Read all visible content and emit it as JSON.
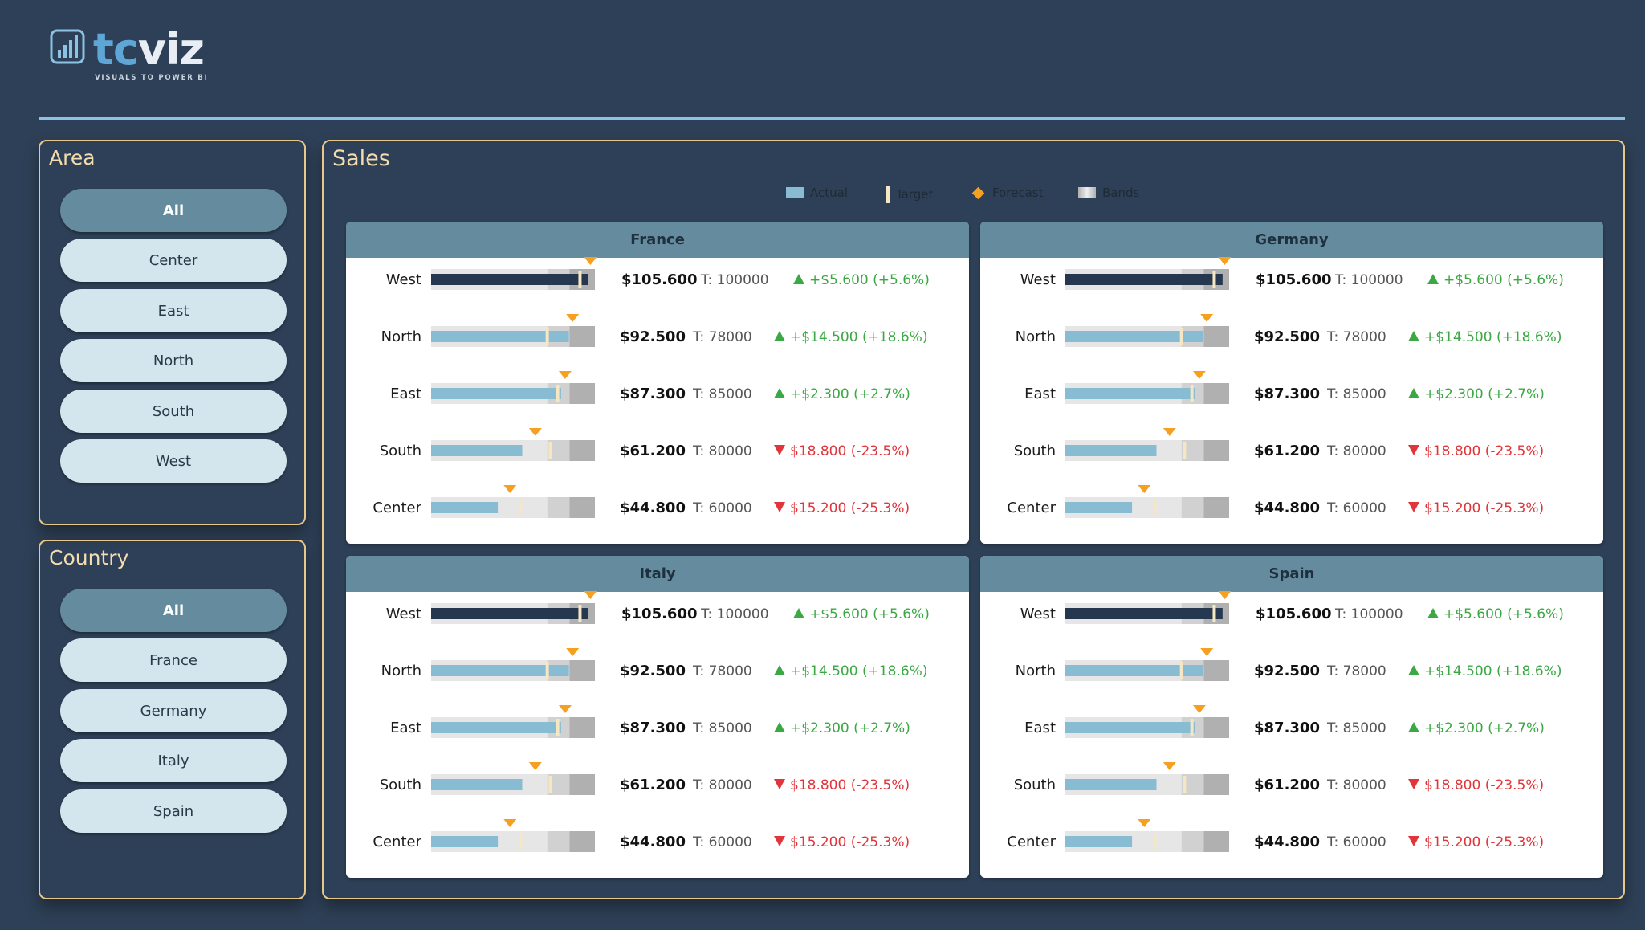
{
  "brand": {
    "name_part1": "tc",
    "name_part2": "viz",
    "tagline": "VISUALS TO POWER BI"
  },
  "colors": {
    "background": "#2e4057",
    "panel_border": "#e8c88a",
    "pill": "#d3e6ee",
    "pill_selected": "#658c9e",
    "actual": "#87bcd3",
    "actual_best": "#263850",
    "target": "#f5e6c4",
    "forecast": "#f5a020",
    "band_light": "#e6e6e6",
    "band_mid": "#d1d1d1",
    "band_dark": "#b0b0b0",
    "positive": "#3ba843",
    "negative": "#e0353a"
  },
  "area_slicer": {
    "title": "Area",
    "items": [
      {
        "label": "All",
        "selected": true
      },
      {
        "label": "Center",
        "selected": false
      },
      {
        "label": "East",
        "selected": false
      },
      {
        "label": "North",
        "selected": false
      },
      {
        "label": "South",
        "selected": false
      },
      {
        "label": "West",
        "selected": false
      }
    ]
  },
  "country_slicer": {
    "title": "Country",
    "items": [
      {
        "label": "All",
        "selected": true
      },
      {
        "label": "France",
        "selected": false
      },
      {
        "label": "Germany",
        "selected": false
      },
      {
        "label": "Italy",
        "selected": false
      },
      {
        "label": "Spain",
        "selected": false
      }
    ]
  },
  "sales": {
    "title": "Sales",
    "legend": [
      {
        "label": "Actual",
        "icon": "actual-swatch-icon"
      },
      {
        "label": "Target",
        "icon": "target-swatch-icon"
      },
      {
        "label": "Forecast",
        "icon": "forecast-diamond-icon"
      },
      {
        "label": "Bands",
        "icon": "bands-swatch-icon"
      }
    ]
  },
  "chart_data": {
    "type": "bullet",
    "axis_max": 110000,
    "bands": [
      78000,
      93000,
      110000
    ],
    "panels": [
      {
        "title": "France",
        "rows": [
          {
            "label": "West",
            "actual": 105600,
            "target": 100000,
            "forecast": 107000,
            "value_text": "$105.600",
            "target_text": "T: 100000",
            "delta_text": "+$5.600 (+5.6%)",
            "direction": "up"
          },
          {
            "label": "North",
            "actual": 92500,
            "target": 78000,
            "forecast": 95000,
            "value_text": "$92.500",
            "target_text": "T: 78000",
            "delta_text": "+$14.500 (+18.6%)",
            "direction": "up"
          },
          {
            "label": "East",
            "actual": 87300,
            "target": 85000,
            "forecast": 90000,
            "value_text": "$87.300",
            "target_text": "T: 85000",
            "delta_text": "+$2.300 (+2.7%)",
            "direction": "up"
          },
          {
            "label": "South",
            "actual": 61200,
            "target": 80000,
            "forecast": 70000,
            "value_text": "$61.200",
            "target_text": "T: 80000",
            "delta_text": "$18.800 (-23.5%)",
            "direction": "down"
          },
          {
            "label": "Center",
            "actual": 44800,
            "target": 60000,
            "forecast": 53000,
            "value_text": "$44.800",
            "target_text": "T: 60000",
            "delta_text": "$15.200 (-25.3%)",
            "direction": "down"
          }
        ]
      },
      {
        "title": "Germany",
        "rows": [
          {
            "label": "West",
            "actual": 105600,
            "target": 100000,
            "forecast": 107000,
            "value_text": "$105.600",
            "target_text": "T: 100000",
            "delta_text": "+$5.600 (+5.6%)",
            "direction": "up"
          },
          {
            "label": "North",
            "actual": 92500,
            "target": 78000,
            "forecast": 95000,
            "value_text": "$92.500",
            "target_text": "T: 78000",
            "delta_text": "+$14.500 (+18.6%)",
            "direction": "up"
          },
          {
            "label": "East",
            "actual": 87300,
            "target": 85000,
            "forecast": 90000,
            "value_text": "$87.300",
            "target_text": "T: 85000",
            "delta_text": "+$2.300 (+2.7%)",
            "direction": "up"
          },
          {
            "label": "South",
            "actual": 61200,
            "target": 80000,
            "forecast": 70000,
            "value_text": "$61.200",
            "target_text": "T: 80000",
            "delta_text": "$18.800 (-23.5%)",
            "direction": "down"
          },
          {
            "label": "Center",
            "actual": 44800,
            "target": 60000,
            "forecast": 53000,
            "value_text": "$44.800",
            "target_text": "T: 60000",
            "delta_text": "$15.200 (-25.3%)",
            "direction": "down"
          }
        ]
      },
      {
        "title": "Italy",
        "rows": [
          {
            "label": "West",
            "actual": 105600,
            "target": 100000,
            "forecast": 107000,
            "value_text": "$105.600",
            "target_text": "T: 100000",
            "delta_text": "+$5.600 (+5.6%)",
            "direction": "up"
          },
          {
            "label": "North",
            "actual": 92500,
            "target": 78000,
            "forecast": 95000,
            "value_text": "$92.500",
            "target_text": "T: 78000",
            "delta_text": "+$14.500 (+18.6%)",
            "direction": "up"
          },
          {
            "label": "East",
            "actual": 87300,
            "target": 85000,
            "forecast": 90000,
            "value_text": "$87.300",
            "target_text": "T: 85000",
            "delta_text": "+$2.300 (+2.7%)",
            "direction": "up"
          },
          {
            "label": "South",
            "actual": 61200,
            "target": 80000,
            "forecast": 70000,
            "value_text": "$61.200",
            "target_text": "T: 80000",
            "delta_text": "$18.800 (-23.5%)",
            "direction": "down"
          },
          {
            "label": "Center",
            "actual": 44800,
            "target": 60000,
            "forecast": 53000,
            "value_text": "$44.800",
            "target_text": "T: 60000",
            "delta_text": "$15.200 (-25.3%)",
            "direction": "down"
          }
        ]
      },
      {
        "title": "Spain",
        "rows": [
          {
            "label": "West",
            "actual": 105600,
            "target": 100000,
            "forecast": 107000,
            "value_text": "$105.600",
            "target_text": "T: 100000",
            "delta_text": "+$5.600 (+5.6%)",
            "direction": "up"
          },
          {
            "label": "North",
            "actual": 92500,
            "target": 78000,
            "forecast": 95000,
            "value_text": "$92.500",
            "target_text": "T: 78000",
            "delta_text": "+$14.500 (+18.6%)",
            "direction": "up"
          },
          {
            "label": "East",
            "actual": 87300,
            "target": 85000,
            "forecast": 90000,
            "value_text": "$87.300",
            "target_text": "T: 85000",
            "delta_text": "+$2.300 (+2.7%)",
            "direction": "up"
          },
          {
            "label": "South",
            "actual": 61200,
            "target": 80000,
            "forecast": 70000,
            "value_text": "$61.200",
            "target_text": "T: 80000",
            "delta_text": "$18.800 (-23.5%)",
            "direction": "down"
          },
          {
            "label": "Center",
            "actual": 44800,
            "target": 60000,
            "forecast": 53000,
            "value_text": "$44.800",
            "target_text": "T: 60000",
            "delta_text": "$15.200 (-25.3%)",
            "direction": "down"
          }
        ]
      }
    ]
  }
}
